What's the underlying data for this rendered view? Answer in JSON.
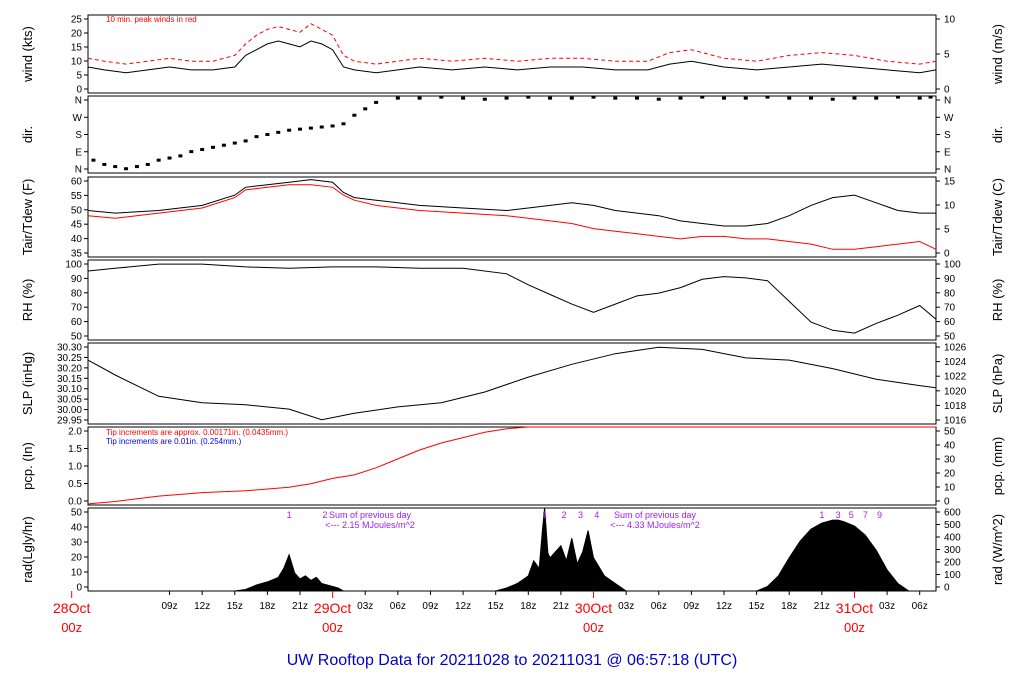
{
  "title": "UW Rooftop Data for 20211028  to  20211031 @ 06:57:18  (UTC)",
  "colors": {
    "black": "#000000",
    "red": "#ff0000",
    "blue": "#0000ff",
    "purple": "#a020f0",
    "title": "#0000cc"
  },
  "time_axis": {
    "hour_labels": [
      "09z",
      "12z",
      "15z",
      "18z",
      "21z",
      "03z",
      "06z",
      "09z",
      "12z",
      "15z",
      "18z",
      "21z",
      "03z",
      "06z",
      "09z",
      "12z",
      "15z",
      "18z",
      "21z",
      "03z",
      "06z"
    ],
    "hour_values": [
      9,
      12,
      15,
      18,
      21,
      27,
      30,
      33,
      36,
      39,
      42,
      45,
      51,
      54,
      57,
      60,
      63,
      66,
      69,
      75,
      78
    ],
    "day_markers": [
      {
        "name": "28Oct",
        "hour_label": "00z",
        "value": 0
      },
      {
        "name": "29Oct",
        "hour_label": "00z",
        "value": 24
      },
      {
        "name": "30Oct",
        "hour_label": "00z",
        "value": 48
      },
      {
        "name": "31Oct",
        "hour_label": "00z",
        "value": 72
      }
    ],
    "range_hours": [
      1.5,
      79.5
    ]
  },
  "chart_data": [
    {
      "type": "line",
      "ylabel": "wind (kts)",
      "ylabel_right": "wind (m/s)",
      "ylim": [
        0,
        27
      ],
      "yticks": [
        "0",
        "5",
        "10",
        "15",
        "20",
        "25"
      ],
      "right_ticks": [
        "0",
        "5",
        "10"
      ],
      "annotation": "10 min. peak winds in red",
      "series": [
        {
          "color": "#000000",
          "x": [
            1.5,
            3,
            5,
            7,
            9,
            11,
            13,
            15,
            16,
            17,
            18,
            19,
            20,
            21,
            22,
            23,
            24,
            25,
            26,
            28,
            30,
            32,
            35,
            38,
            41,
            44,
            47,
            50,
            53,
            55,
            57,
            60,
            63,
            66,
            69,
            72,
            75,
            78,
            79.5
          ],
          "y": [
            9,
            8,
            7,
            8,
            9,
            8,
            8,
            9,
            13,
            15,
            17,
            18,
            17,
            16,
            18,
            17,
            15,
            9,
            8,
            7,
            8,
            9,
            8,
            9,
            8,
            9,
            9,
            8,
            8,
            10,
            11,
            9,
            8,
            9,
            10,
            9,
            8,
            7,
            8
          ]
        },
        {
          "color": "#ff0000",
          "x": [
            1.5,
            3,
            5,
            7,
            9,
            11,
            13,
            15,
            16,
            17,
            18,
            19,
            20,
            21,
            22,
            23,
            24,
            25,
            26,
            28,
            30,
            32,
            35,
            38,
            41,
            44,
            47,
            50,
            53,
            55,
            57,
            60,
            63,
            66,
            69,
            72,
            75,
            78,
            79.5
          ],
          "y": [
            12,
            11,
            10,
            11,
            12,
            11,
            11,
            13,
            17,
            20,
            22,
            23,
            22,
            21,
            24,
            22,
            20,
            13,
            11,
            10,
            11,
            12,
            11,
            12,
            11,
            12,
            12,
            11,
            11,
            14,
            15,
            12,
            11,
            13,
            14,
            13,
            11,
            10,
            11
          ]
        }
      ]
    },
    {
      "type": "scatter",
      "ylabel": "dir.",
      "ylabel_right": "dir.",
      "ylim": [
        0,
        360
      ],
      "yticks": [
        "N",
        "E",
        "S",
        "W",
        "N"
      ],
      "right_ticks": [
        "N",
        "E",
        "S",
        "W",
        "N"
      ],
      "series": [
        {
          "color": "#000000",
          "x": [
            2,
            3,
            4,
            5,
            6,
            7,
            8,
            9,
            10,
            11,
            12,
            13,
            14,
            15,
            16,
            17,
            18,
            19,
            20,
            21,
            22,
            23,
            24,
            25,
            26,
            27,
            28,
            30,
            32,
            34,
            36,
            38,
            40,
            42,
            44,
            46,
            48,
            50,
            52,
            54,
            56,
            58,
            60,
            62,
            64,
            66,
            68,
            70,
            72,
            74,
            76,
            78,
            79
          ],
          "y": [
            60,
            40,
            30,
            20,
            30,
            40,
            60,
            70,
            80,
            100,
            110,
            120,
            130,
            140,
            150,
            170,
            180,
            190,
            200,
            205,
            210,
            215,
            220,
            230,
            270,
            300,
            330,
            350,
            350,
            355,
            350,
            345,
            350,
            355,
            350,
            350,
            355,
            350,
            350,
            345,
            350,
            355,
            350,
            350,
            355,
            350,
            350,
            345,
            350,
            350,
            355,
            350,
            355
          ]
        }
      ]
    },
    {
      "type": "line",
      "ylabel": "Tair/Tdew (F)",
      "ylabel_right": "Tair/Tdew (C)",
      "ylim": [
        30,
        61
      ],
      "yticks": [
        "35",
        "40",
        "45",
        "50",
        "55",
        "60"
      ],
      "right_ticks": [
        "0",
        "5",
        "10",
        "15"
      ],
      "series": [
        {
          "color": "#000000",
          "x": [
            1.5,
            4,
            8,
            12,
            15,
            16,
            18,
            20,
            22,
            24,
            25,
            26,
            28,
            32,
            36,
            40,
            42,
            44,
            46,
            48,
            50,
            52,
            54,
            56,
            58,
            60,
            62,
            64,
            66,
            68,
            70,
            72,
            74,
            76,
            78,
            79.5
          ],
          "y": [
            48,
            47,
            48,
            50,
            54,
            57,
            58,
            59,
            60,
            59,
            55,
            53,
            52,
            50,
            49,
            48,
            49,
            50,
            51,
            50,
            48,
            47,
            46,
            44,
            43,
            42,
            42,
            43,
            46,
            50,
            53,
            54,
            51,
            48,
            47,
            47
          ]
        },
        {
          "color": "#ff0000",
          "x": [
            1.5,
            4,
            8,
            12,
            15,
            16,
            18,
            20,
            22,
            24,
            25,
            26,
            28,
            32,
            36,
            40,
            42,
            44,
            46,
            48,
            50,
            52,
            54,
            56,
            58,
            60,
            62,
            64,
            66,
            68,
            70,
            72,
            74,
            76,
            78,
            79.5
          ],
          "y": [
            46,
            45,
            47,
            49,
            53,
            56,
            57,
            58,
            58,
            57,
            54,
            52,
            50,
            48,
            47,
            46,
            45,
            44,
            43,
            41,
            40,
            39,
            38,
            37,
            38,
            38,
            37,
            37,
            36,
            35,
            33,
            33,
            34,
            35,
            36,
            33
          ]
        }
      ]
    },
    {
      "type": "line",
      "ylabel": "RH (%)",
      "ylabel_right": "RH (%)",
      "ylim": [
        42,
        100
      ],
      "yticks": [
        "50",
        "60",
        "70",
        "80",
        "90",
        "100"
      ],
      "right_ticks": [
        "50",
        "60",
        "70",
        "80",
        "90",
        "100"
      ],
      "series": [
        {
          "color": "#000000",
          "x": [
            1.5,
            4,
            8,
            12,
            16,
            20,
            24,
            28,
            32,
            36,
            40,
            42,
            44,
            46,
            48,
            50,
            52,
            54,
            56,
            58,
            60,
            62,
            64,
            66,
            68,
            70,
            72,
            74,
            76,
            78,
            79.5
          ],
          "y": [
            92,
            94,
            97,
            97,
            95,
            94,
            95,
            95,
            94,
            94,
            90,
            82,
            75,
            68,
            62,
            68,
            74,
            76,
            80,
            86,
            88,
            87,
            85,
            70,
            55,
            49,
            47,
            54,
            60,
            67,
            57
          ]
        }
      ]
    },
    {
      "type": "line",
      "ylabel": "SLP (inHg)",
      "ylabel_right": "SLP (hPa)",
      "ylim": [
        29.95,
        30.33
      ],
      "yticks": [
        "29.95",
        "30.00",
        "30.05",
        "30.10",
        "30.15",
        "30.20",
        "30.25",
        "30.30"
      ],
      "right_ticks": [
        "1016",
        "1018",
        "1020",
        "1022",
        "1024",
        "1026"
      ],
      "series": [
        {
          "color": "#000000",
          "x": [
            1.5,
            4,
            8,
            12,
            16,
            20,
            23,
            26,
            30,
            34,
            38,
            42,
            46,
            50,
            54,
            58,
            62,
            66,
            70,
            74,
            78,
            79.5
          ],
          "y": [
            30.25,
            30.18,
            30.08,
            30.05,
            30.04,
            30.02,
            29.97,
            30.0,
            30.03,
            30.05,
            30.1,
            30.17,
            30.23,
            30.28,
            30.31,
            30.3,
            30.26,
            30.25,
            30.21,
            30.16,
            30.13,
            30.12
          ]
        }
      ]
    },
    {
      "type": "line",
      "ylabel": "pcp. (In)",
      "ylabel_right": "pcp. (mm)",
      "ylim": [
        0,
        2.2
      ],
      "yticks": [
        "0.0",
        "0.5",
        "1.0",
        "1.5",
        "2.0"
      ],
      "right_ticks": [
        "0",
        "10",
        "20",
        "30",
        "40",
        "50"
      ],
      "annotations": [
        {
          "text": "Tip increments are approx. 0.00171in. (0.0435mm.)",
          "color": "#ff0000"
        },
        {
          "text": "Tip increments are 0.01in. (0.254mm.)",
          "color": "#0000ff"
        }
      ],
      "series": [
        {
          "color": "#ff0000",
          "x": [
            1.5,
            4,
            8,
            12,
            16,
            20,
            22,
            24,
            26,
            28,
            30,
            32,
            34,
            36,
            38,
            40,
            42,
            44,
            46,
            48,
            60,
            79.5
          ],
          "y": [
            0.03,
            0.1,
            0.25,
            0.35,
            0.4,
            0.5,
            0.6,
            0.75,
            0.85,
            1.05,
            1.3,
            1.55,
            1.75,
            1.9,
            2.05,
            2.15,
            2.2,
            2.2,
            2.2,
            2.2,
            2.2,
            2.2
          ]
        }
      ]
    },
    {
      "type": "area",
      "ylabel": "rad(Lgly/hr)",
      "ylabel_right": "rad (W/m^2)",
      "ylim": [
        0,
        55
      ],
      "yticks": [
        "0",
        "10",
        "20",
        "30",
        "40",
        "50"
      ],
      "right_ticks": [
        "0",
        "100",
        "200",
        "300",
        "400",
        "500",
        "600"
      ],
      "annotations": [
        {
          "text": "Sum of previous day",
          "color": "#a020f0"
        },
        {
          "text": "<--- 2.15 MJoules/m^2",
          "color": "#a020f0"
        },
        {
          "text": "Sum of previous day",
          "color": "#a020f0"
        },
        {
          "text": "<--- 4.33 MJoules/m^2",
          "color": "#a020f0"
        }
      ],
      "marker_labels": [
        "1",
        "2",
        "1",
        "2",
        "3",
        "4",
        "1",
        "3",
        "5",
        "7",
        "9"
      ],
      "marker_x": [
        20,
        23.3,
        43.5,
        45.3,
        46.8,
        48.3,
        69,
        70.5,
        71.7,
        73,
        74.3
      ],
      "series": [
        {
          "color": "#000000",
          "x": [
            15,
            16,
            17,
            18,
            19,
            19.5,
            20,
            20.5,
            21,
            21.5,
            22,
            22.5,
            23,
            24,
            24.5,
            25,
            39,
            40,
            41,
            42,
            42.5,
            43,
            43.3,
            43.5,
            43.8,
            44,
            45,
            45.5,
            46,
            46.5,
            47,
            47.5,
            48,
            49,
            50,
            51,
            55,
            63,
            64,
            65,
            66,
            67,
            68,
            69,
            70,
            70.5,
            71,
            72,
            73,
            74,
            75,
            76,
            77,
            79.5
          ],
          "y": [
            0,
            1,
            4,
            6,
            9,
            15,
            24,
            12,
            8,
            10,
            7,
            9,
            5,
            3,
            2,
            0,
            0,
            2,
            5,
            10,
            20,
            15,
            40,
            55,
            25,
            22,
            30,
            20,
            35,
            18,
            26,
            40,
            22,
            10,
            5,
            0,
            0,
            0,
            3,
            10,
            22,
            33,
            41,
            45,
            47,
            47,
            46,
            43,
            37,
            27,
            14,
            5,
            0,
            0
          ]
        }
      ]
    }
  ]
}
